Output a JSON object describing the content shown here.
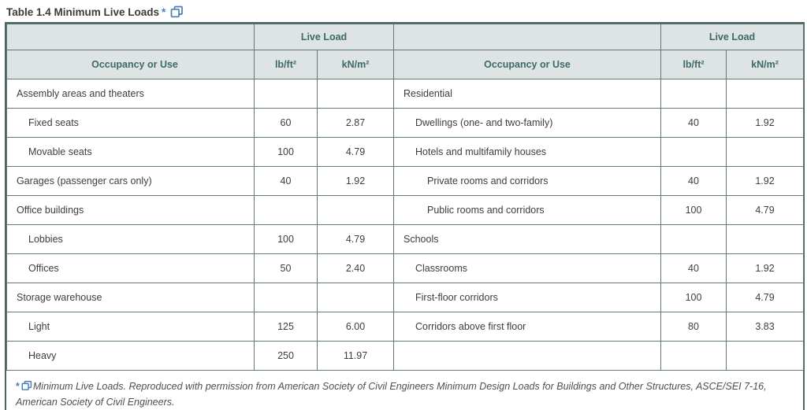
{
  "page": {
    "title": "Table 1.4 Minimum Live Loads",
    "title_marker": "*"
  },
  "colors": {
    "header_bg": "#dde4e3",
    "header_text": "#3d6969",
    "cell_border": "#5f7878",
    "outer_border": "#4d6464",
    "link_blue": "#4a7db8"
  },
  "table": {
    "column_headers": {
      "live_load": "Live Load",
      "occupancy": "Occupancy or Use",
      "lb": "lb/ft²",
      "kn": "kN/m²"
    },
    "rows": [
      {
        "left": {
          "use": "Assembly areas and theaters",
          "indent": 0,
          "lb": "",
          "kn": ""
        },
        "right": {
          "use": "Residential",
          "indent": 0,
          "lb": "",
          "kn": ""
        }
      },
      {
        "left": {
          "use": "Fixed seats",
          "indent": 1,
          "lb": "60",
          "kn": "2.87"
        },
        "right": {
          "use": "Dwellings (one- and two-family)",
          "indent": 1,
          "lb": "40",
          "kn": "1.92"
        }
      },
      {
        "left": {
          "use": "Movable seats",
          "indent": 1,
          "lb": "100",
          "kn": "4.79"
        },
        "right": {
          "use": "Hotels and multifamily houses",
          "indent": 1,
          "lb": "",
          "kn": ""
        }
      },
      {
        "left": {
          "use": "Garages (passenger cars only)",
          "indent": 0,
          "lb": "40",
          "kn": "1.92"
        },
        "right": {
          "use": "Private rooms and corridors",
          "indent": 2,
          "lb": "40",
          "kn": "1.92"
        }
      },
      {
        "left": {
          "use": "Office buildings",
          "indent": 0,
          "lb": "",
          "kn": ""
        },
        "right": {
          "use": "Public rooms and corridors",
          "indent": 2,
          "lb": "100",
          "kn": "4.79"
        }
      },
      {
        "left": {
          "use": "Lobbies",
          "indent": 1,
          "lb": "100",
          "kn": "4.79"
        },
        "right": {
          "use": "Schools",
          "indent": 0,
          "lb": "",
          "kn": ""
        }
      },
      {
        "left": {
          "use": "Offices",
          "indent": 1,
          "lb": "50",
          "kn": "2.40"
        },
        "right": {
          "use": "Classrooms",
          "indent": 1,
          "lb": "40",
          "kn": "1.92"
        }
      },
      {
        "left": {
          "use": "Storage warehouse",
          "indent": 0,
          "lb": "",
          "kn": ""
        },
        "right": {
          "use": "First-floor corridors",
          "indent": 1,
          "lb": "100",
          "kn": "4.79"
        }
      },
      {
        "left": {
          "use": "Light",
          "indent": 1,
          "lb": "125",
          "kn": "6.00"
        },
        "right": {
          "use": "Corridors above first floor",
          "indent": 1,
          "lb": "80",
          "kn": "3.83"
        }
      },
      {
        "left": {
          "use": "Heavy",
          "indent": 1,
          "lb": "250",
          "kn": "11.97"
        },
        "right": {
          "use": "",
          "indent": 0,
          "lb": "",
          "kn": ""
        }
      }
    ]
  },
  "footnote": {
    "marker": "*",
    "text": "Minimum Live Loads. Reproduced with permission from American Society of Civil Engineers Minimum Design Loads for Buildings and Other Structures, ASCE/SEI 7-16, American Society of Civil Engineers."
  }
}
